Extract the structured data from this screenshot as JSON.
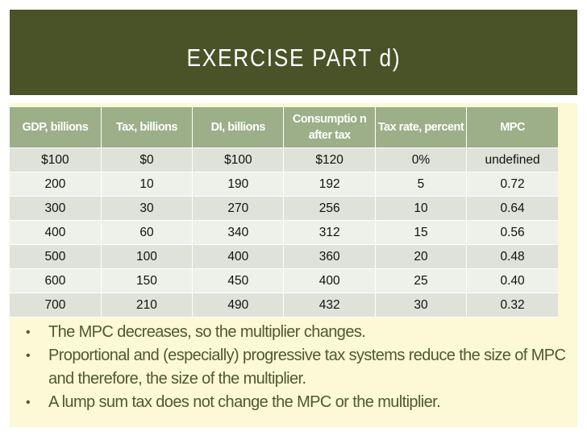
{
  "title": "EXERCISE PART d)",
  "table": {
    "headers": [
      "GDP, billions",
      "Tax, billions",
      "DI, billions",
      "Consumptio n after tax",
      "Tax rate, percent",
      "MPC"
    ],
    "rows": [
      [
        "$100",
        "$0",
        "$100",
        "$120",
        "0%",
        "undefined"
      ],
      [
        "200",
        "10",
        "190",
        "192",
        "5",
        "0.72"
      ],
      [
        "300",
        "30",
        "270",
        "256",
        "10",
        "0.64"
      ],
      [
        "400",
        "60",
        "340",
        "312",
        "15",
        "0.56"
      ],
      [
        "500",
        "100",
        "400",
        "360",
        "20",
        "0.48"
      ],
      [
        "600",
        "150",
        "450",
        "400",
        "25",
        "0.40"
      ],
      [
        "700",
        "210",
        "490",
        "432",
        "30",
        "0.32"
      ]
    ]
  },
  "bullet_char": "•",
  "bullets": [
    "The MPC decreases, so the multiplier changes.",
    "Proportional and (especially) progressive tax systems reduce the size of MPC and therefore, the size of the multiplier.",
    "A lump sum tax does not change the MPC or the multiplier."
  ],
  "colors": {
    "title_bar": "#4a5228",
    "header": "#9caf88",
    "content_bg": "#fdf8d6",
    "text": "#4e5a2e"
  }
}
